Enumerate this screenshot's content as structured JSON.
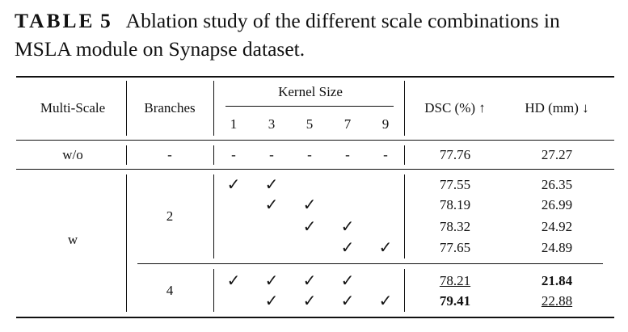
{
  "caption": {
    "label": "TABLE",
    "number": "5",
    "text": "Ablation study of the different scale combinations in MSLA module on Synapse dataset."
  },
  "headers": {
    "multi_scale": "Multi-Scale",
    "branches": "Branches",
    "kernel_size": "Kernel Size",
    "kernels": [
      "1",
      "3",
      "5",
      "7",
      "9"
    ],
    "dsc": "DSC (%) ↑",
    "hd": "HD (mm) ↓"
  },
  "rows": [
    {
      "multi_scale": "w/o",
      "branches": "-",
      "kernels": [
        "-",
        "-",
        "-",
        "-",
        "-"
      ],
      "dsc": "77.76",
      "hd": "27.27"
    },
    {
      "kernels": [
        "✓",
        "✓",
        "",
        "",
        ""
      ],
      "dsc": "77.55",
      "hd": "26.35"
    },
    {
      "kernels": [
        "",
        "✓",
        "✓",
        "",
        ""
      ],
      "dsc": "78.19",
      "hd": "26.99"
    },
    {
      "kernels": [
        "",
        "",
        "✓",
        "✓",
        ""
      ],
      "dsc": "78.32",
      "hd": "24.92"
    },
    {
      "kernels": [
        "",
        "",
        "",
        "✓",
        "✓"
      ],
      "dsc": "77.65",
      "hd": "24.89"
    },
    {
      "kernels": [
        "✓",
        "✓",
        "✓",
        "✓",
        ""
      ],
      "dsc": "78.21",
      "hd": "21.84"
    },
    {
      "kernels": [
        "",
        "✓",
        "✓",
        "✓",
        "✓"
      ],
      "dsc": "79.41",
      "hd": "22.88"
    }
  ],
  "group_labels": {
    "w": "w",
    "two": "2",
    "four": "4"
  }
}
